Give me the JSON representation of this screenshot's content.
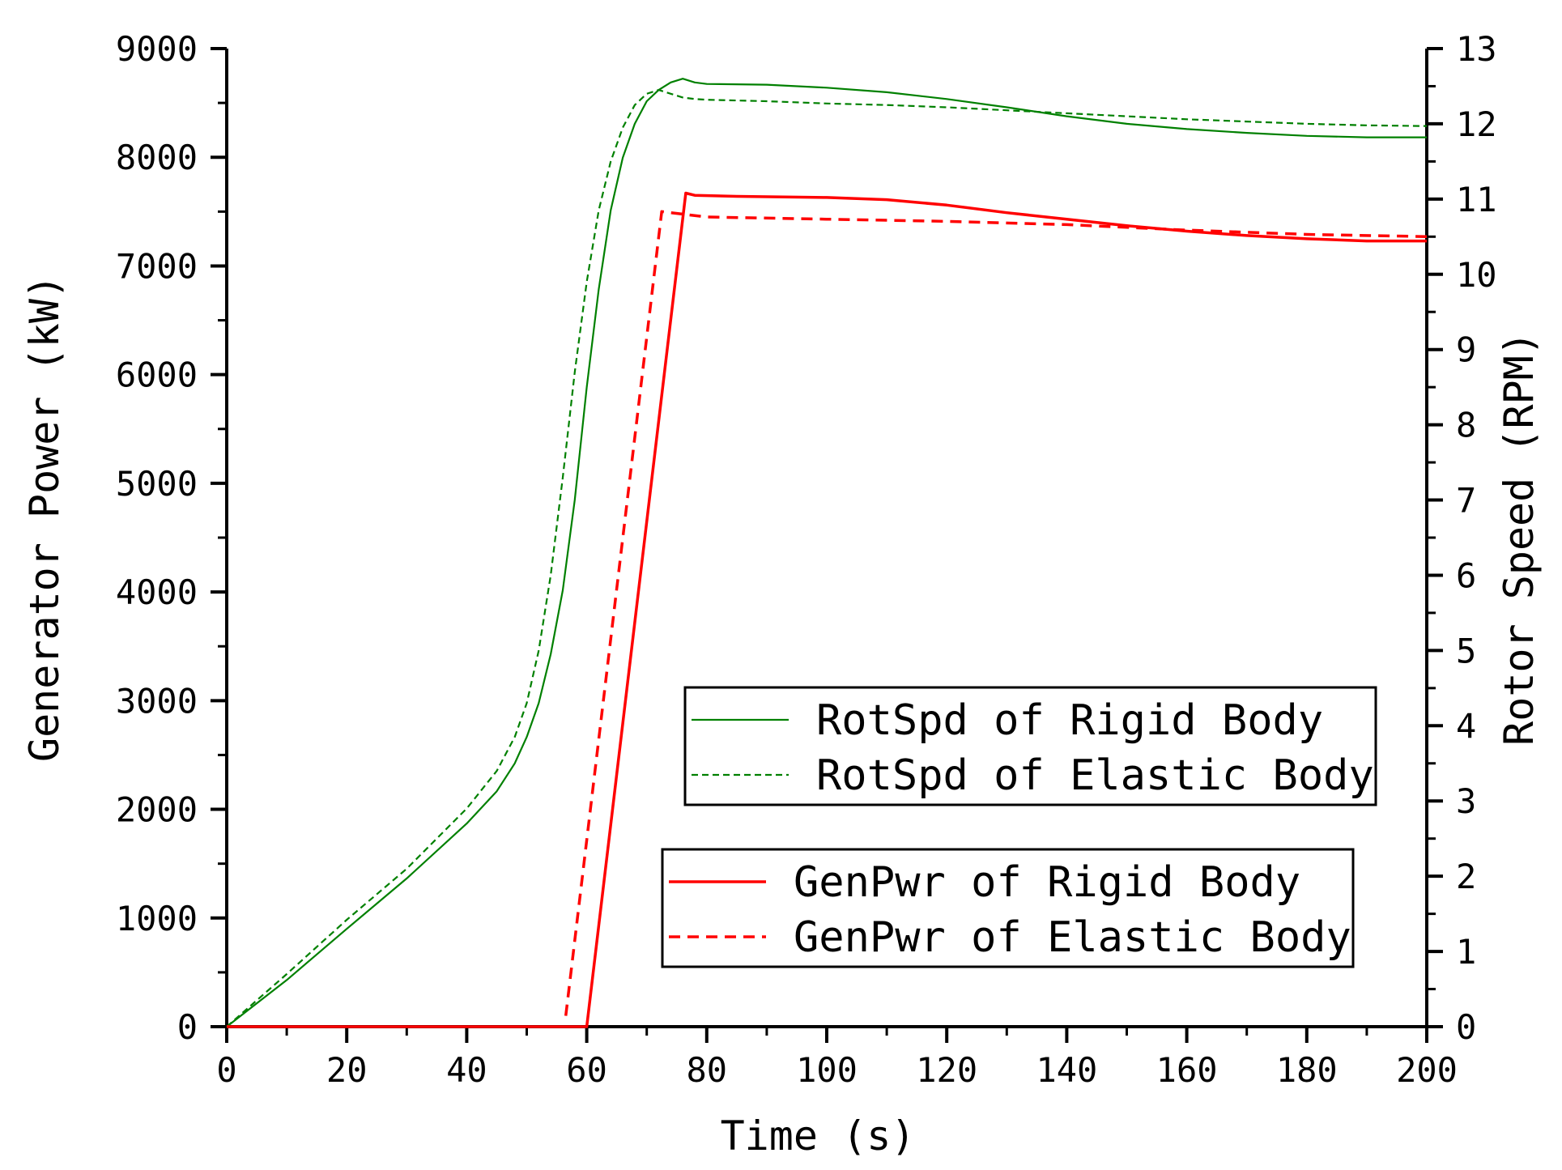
{
  "chart_data": {
    "type": "line",
    "title": "",
    "xlabel": "Time (s)",
    "ylabel_left": "Generator Power (kW)",
    "ylabel_right": "Rotor Speed (RPM)",
    "xlim": [
      0,
      200
    ],
    "ylim_left": [
      0,
      9000
    ],
    "ylim_right": [
      0,
      13
    ],
    "x_ticks": [
      0,
      20,
      40,
      60,
      80,
      100,
      120,
      140,
      160,
      180,
      200
    ],
    "y_left_ticks": [
      0,
      1000,
      2000,
      3000,
      4000,
      5000,
      6000,
      7000,
      8000,
      9000
    ],
    "y_right_ticks": [
      0,
      1,
      2,
      3,
      4,
      5,
      6,
      7,
      8,
      9,
      10,
      11,
      12,
      13
    ],
    "grid": false,
    "legend_groups": [
      {
        "entries": [
          0,
          1
        ]
      },
      {
        "entries": [
          2,
          3
        ]
      }
    ],
    "series": [
      {
        "name": "RotSpd of Rigid Body",
        "axis": "right",
        "color": "#008000",
        "style": "solid",
        "x": [
          0,
          10,
          20,
          30,
          40,
          45,
          48,
          50,
          52,
          54,
          56,
          58,
          60,
          62,
          64,
          66,
          68,
          70,
          72,
          74,
          76,
          78,
          80,
          90,
          100,
          110,
          120,
          130,
          140,
          150,
          160,
          170,
          180,
          190,
          200
        ],
        "y": [
          0,
          0.62,
          1.3,
          1.97,
          2.7,
          3.13,
          3.5,
          3.85,
          4.3,
          4.95,
          5.8,
          7.0,
          8.5,
          9.8,
          10.85,
          11.55,
          12.0,
          12.3,
          12.45,
          12.55,
          12.6,
          12.55,
          12.53,
          12.52,
          12.48,
          12.42,
          12.33,
          12.22,
          12.1,
          12.0,
          11.93,
          11.88,
          11.84,
          11.82,
          11.82
        ]
      },
      {
        "name": "RotSpd of Elastic Body",
        "axis": "right",
        "color": "#008000",
        "style": "dashed",
        "x": [
          0,
          10,
          20,
          30,
          40,
          45,
          48,
          50,
          52,
          54,
          56,
          58,
          60,
          62,
          64,
          66,
          68,
          70,
          72,
          74,
          76,
          78,
          80,
          90,
          100,
          110,
          120,
          130,
          140,
          150,
          160,
          170,
          180,
          190,
          200
        ],
        "y": [
          0,
          0.7,
          1.42,
          2.1,
          2.9,
          3.4,
          3.85,
          4.3,
          5.0,
          6.0,
          7.3,
          8.7,
          9.9,
          10.85,
          11.5,
          11.95,
          12.25,
          12.4,
          12.45,
          12.4,
          12.35,
          12.33,
          12.32,
          12.3,
          12.27,
          12.25,
          12.22,
          12.18,
          12.14,
          12.1,
          12.06,
          12.03,
          12.0,
          11.98,
          11.97
        ]
      },
      {
        "name": "GenPwr of Rigid Body",
        "axis": "left",
        "color": "#ff0000",
        "style": "solid",
        "x": [
          0,
          50,
          60,
          76.5,
          78,
          85,
          100,
          110,
          120,
          130,
          140,
          150,
          160,
          170,
          180,
          190,
          200
        ],
        "y": [
          0,
          0,
          0,
          7670,
          7650,
          7640,
          7630,
          7610,
          7560,
          7490,
          7430,
          7370,
          7320,
          7280,
          7250,
          7230,
          7230
        ]
      },
      {
        "name": "GenPwr of Elastic Body",
        "axis": "left",
        "color": "#ff0000",
        "style": "dashed",
        "x": [
          56.5,
          72.5,
          74,
          80,
          100,
          120,
          140,
          160,
          180,
          200
        ],
        "y": [
          100,
          7500,
          7490,
          7450,
          7430,
          7410,
          7380,
          7330,
          7290,
          7270
        ]
      }
    ]
  }
}
